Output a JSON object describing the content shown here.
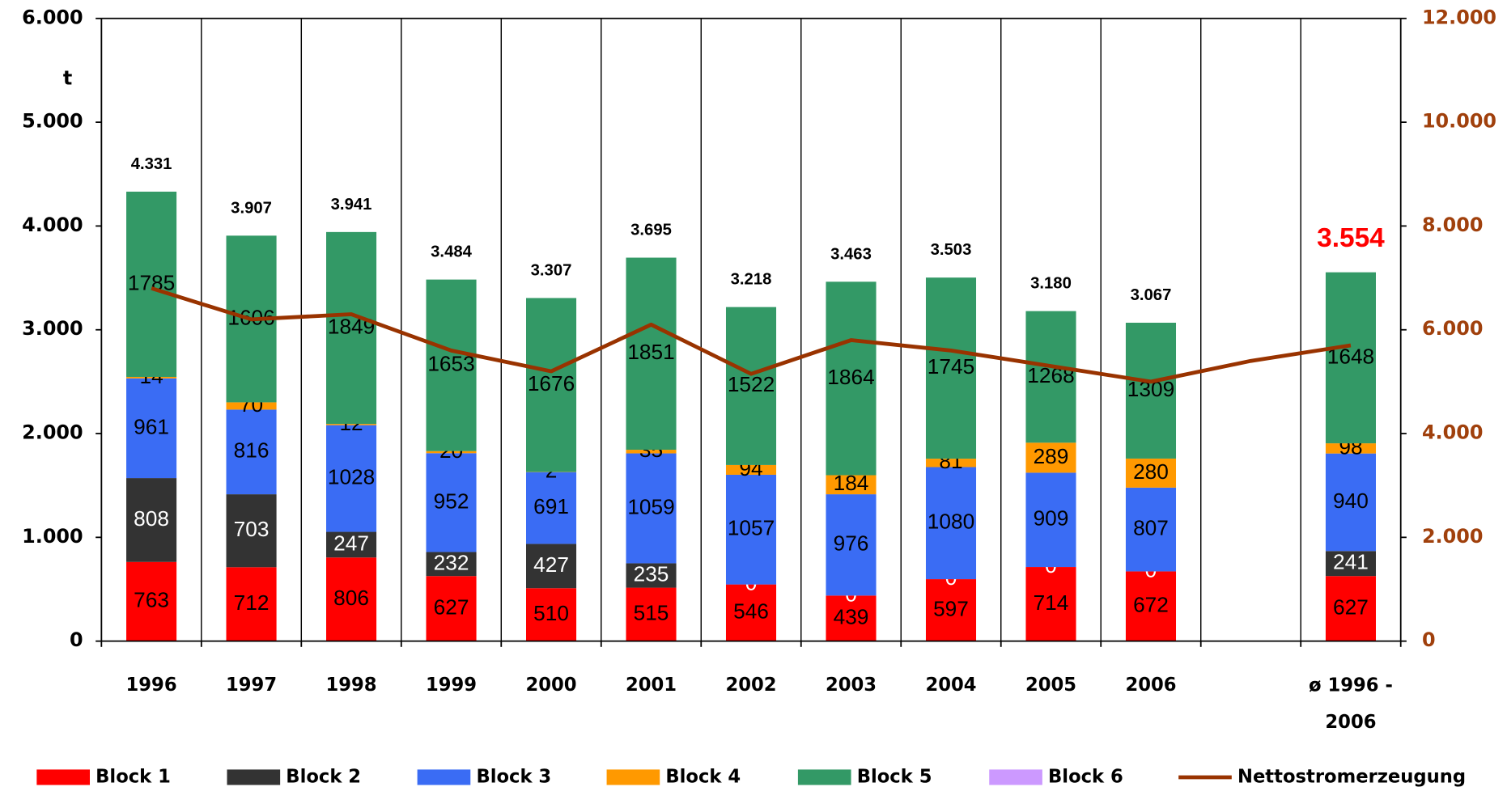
{
  "chart_data": {
    "type": "bar",
    "stacked": true,
    "categories": [
      "1996",
      "1997",
      "1998",
      "1999",
      "2000",
      "2001",
      "2002",
      "2003",
      "2004",
      "2005",
      "2006",
      null,
      "ø 1996 - 2006"
    ],
    "series": [
      {
        "name": "Block 1",
        "color": "#ff0000",
        "label_color": "#000000",
        "values": [
          763,
          712,
          806,
          627,
          510,
          515,
          546,
          439,
          597,
          714,
          672,
          null,
          627
        ]
      },
      {
        "name": "Block 2",
        "color": "#333333",
        "label_color": "#ffffff",
        "values": [
          808,
          703,
          247,
          232,
          427,
          235,
          0,
          0,
          0,
          0,
          0,
          null,
          241
        ]
      },
      {
        "name": "Block 3",
        "color": "#3a6cf4",
        "label_color": "#000000",
        "values": [
          961,
          816,
          1028,
          952,
          691,
          1059,
          1057,
          976,
          1080,
          909,
          807,
          null,
          940
        ]
      },
      {
        "name": "Block 4",
        "color": "#ff9900",
        "label_color": "#000000",
        "values": [
          14,
          70,
          12,
          20,
          2,
          35,
          94,
          184,
          81,
          289,
          280,
          null,
          98
        ]
      },
      {
        "name": "Block 5",
        "color": "#339966",
        "label_color": "#000000",
        "values": [
          1785,
          1606,
          1849,
          1653,
          1676,
          1851,
          1522,
          1864,
          1745,
          1268,
          1309,
          null,
          1648
        ]
      },
      {
        "name": "Block 6",
        "color": "#cc99ff",
        "label_color": "#000000",
        "values": [
          null,
          null,
          null,
          null,
          null,
          null,
          null,
          null,
          null,
          null,
          null,
          null,
          null
        ]
      },
      {
        "name": "Nettostromerzeugung",
        "type": "line",
        "axis": "y2",
        "color": "#993300",
        "values": [
          6800,
          6200,
          6300,
          5600,
          5200,
          6100,
          5150,
          5800,
          5600,
          5300,
          5000,
          5400,
          5700
        ]
      }
    ],
    "totals": {
      "values": [
        4331,
        3907,
        3941,
        3484,
        3307,
        3695,
        3218,
        3463,
        3503,
        3180,
        3067,
        null,
        3554
      ],
      "value_labels": [
        "4.331",
        "3.907",
        "3.941",
        "3.484",
        "3.307",
        "3.695",
        "3.218",
        "3.463",
        "3.503",
        "3.180",
        "3.067",
        null,
        "3.554"
      ],
      "highlight_color": "#ff0000"
    },
    "y_label": "t",
    "ylim": [
      0,
      6000
    ],
    "yticks": [
      0,
      {
        "value": 1000,
        "label": "1.000"
      },
      {
        "value": 2000,
        "label": "2.000"
      },
      {
        "value": 3000,
        "label": "3.000"
      },
      {
        "value": 4000,
        "label": "4.000"
      },
      {
        "value": 5000,
        "label": "5.000"
      },
      {
        "value": 6000,
        "label": "6.000"
      }
    ],
    "y2lim": [
      0,
      12000
    ],
    "y2ticks": [
      0,
      {
        "value": 2000,
        "label": "2.000"
      },
      {
        "value": 4000,
        "label": "4.000"
      },
      {
        "value": 6000,
        "label": "6.000"
      },
      {
        "value": 8000,
        "label": "8.000"
      },
      {
        "value": 10000,
        "label": "10.000"
      },
      {
        "value": 12000,
        "label": "12.000"
      }
    ],
    "y2_color": "#a0400c",
    "legend": "bottom"
  }
}
